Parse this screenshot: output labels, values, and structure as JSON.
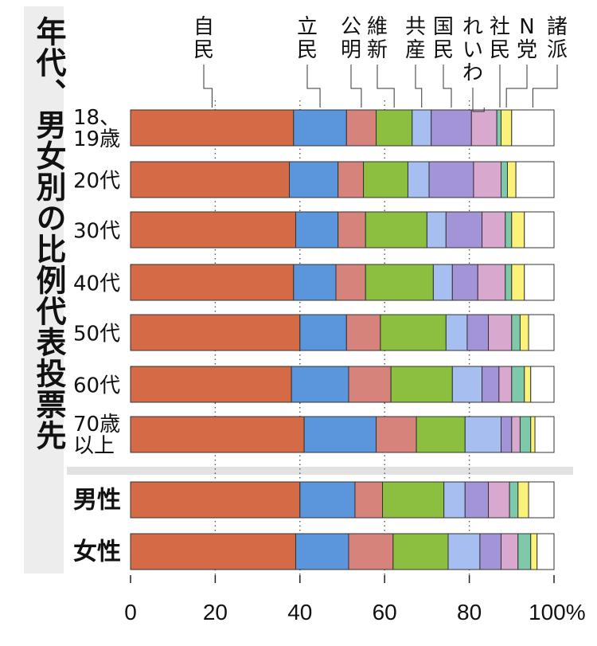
{
  "side_title": "年代、男女別の比例代表投票先",
  "colors": {
    "自民": "#d56b46",
    "立民": "#5b96dc",
    "公明": "#d6837c",
    "維新": "#8cbf3f",
    "共産": "#a6bff0",
    "国民": "#a394d8",
    "れいわ": "#d9a8cf",
    "社民": "#7fc9ab",
    "N党": "#fbf27a",
    "諸派": "#ffffff"
  },
  "chart_data": {
    "type": "bar",
    "orientation": "horizontal",
    "stacked": true,
    "parties": [
      "自民",
      "立民",
      "公明",
      "維新",
      "共産",
      "国民",
      "れいわ",
      "社民",
      "N党",
      "諸派"
    ],
    "party_labels_vertical": [
      "自民",
      "立民",
      "公明",
      "維新",
      "共産",
      "国民",
      "れいわ",
      "社民",
      "N党",
      "諸派"
    ],
    "groups": [
      {
        "label": "18、19歳",
        "values": [
          38.5,
          12.5,
          7,
          8.5,
          4.5,
          9.5,
          6,
          1,
          2.5,
          10
        ]
      },
      {
        "label": "20代",
        "values": [
          37.5,
          11.5,
          6,
          10.5,
          5,
          10.5,
          6.5,
          1.5,
          2,
          9
        ]
      },
      {
        "label": "30代",
        "values": [
          39,
          10,
          6.5,
          14.5,
          4.5,
          8.5,
          5.5,
          1.5,
          3,
          7
        ]
      },
      {
        "label": "40代",
        "values": [
          38.5,
          10,
          7,
          16,
          4.5,
          6,
          6.5,
          1.5,
          3,
          7
        ]
      },
      {
        "label": "50代",
        "values": [
          40,
          11,
          8,
          15.5,
          5,
          5,
          5.5,
          2,
          2,
          6
        ]
      },
      {
        "label": "60代",
        "values": [
          38,
          13.5,
          10,
          14.5,
          7,
          4,
          3,
          3,
          1.5,
          5.5
        ]
      },
      {
        "label": "70歳以上",
        "values": [
          41,
          17,
          9.5,
          11.5,
          8.5,
          2.5,
          2,
          2.5,
          1,
          4.5
        ]
      },
      {
        "label": "男性",
        "values": [
          40,
          13,
          6.5,
          14.5,
          5,
          5.5,
          5,
          2,
          2.5,
          6
        ]
      },
      {
        "label": "女性",
        "values": [
          39,
          12.5,
          10.5,
          13,
          7.5,
          5,
          4,
          3,
          1.5,
          4
        ]
      }
    ],
    "x_ticks": [
      "0",
      "20",
      "40",
      "60",
      "80",
      "100%"
    ],
    "xlim": [
      0,
      100
    ]
  }
}
